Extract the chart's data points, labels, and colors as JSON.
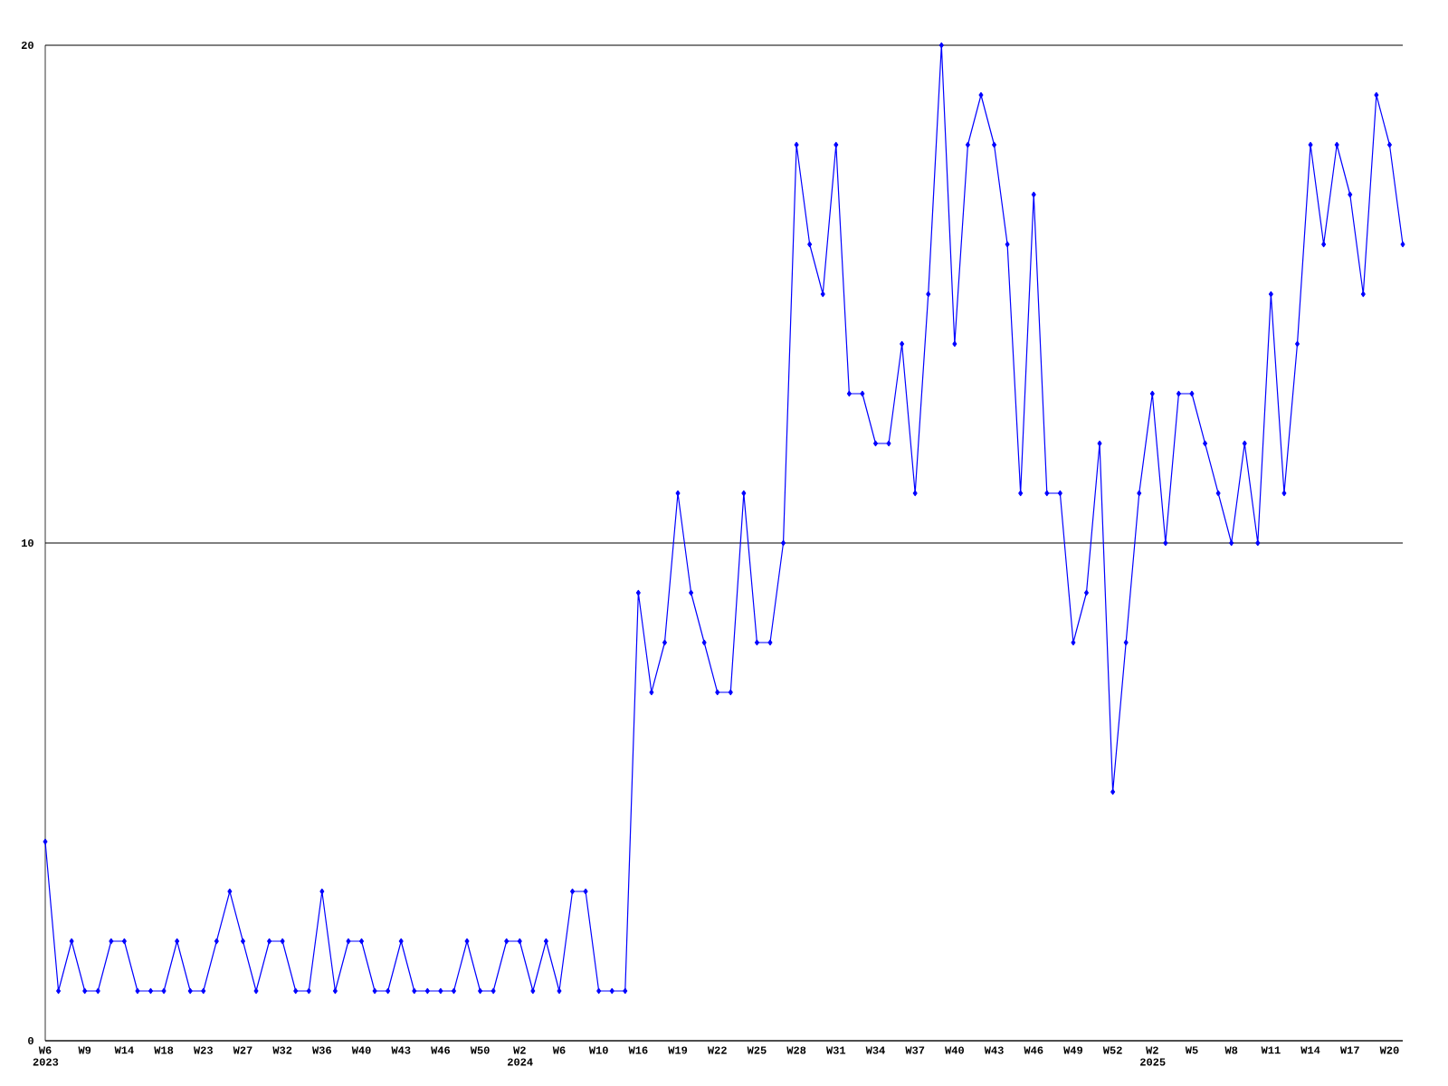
{
  "chart_data": {
    "type": "line",
    "categories": [
      "W6 2023",
      null,
      null,
      "W9",
      null,
      null,
      "W14",
      null,
      null,
      "W18",
      null,
      null,
      "W23",
      null,
      null,
      "W27",
      null,
      null,
      "W32",
      null,
      null,
      "W36",
      null,
      null,
      "W40",
      null,
      null,
      "W43",
      null,
      null,
      "W46",
      null,
      null,
      "W50",
      null,
      null,
      "W2 2024",
      null,
      null,
      "W6",
      null,
      null,
      "W10",
      null,
      null,
      "W16",
      null,
      null,
      "W19",
      null,
      null,
      "W22",
      null,
      null,
      "W25",
      null,
      null,
      "W28",
      null,
      null,
      "W31",
      null,
      null,
      "W34",
      null,
      null,
      "W37",
      null,
      null,
      "W40",
      null,
      null,
      "W43",
      null,
      null,
      "W46",
      null,
      null,
      "W49",
      null,
      null,
      "W52",
      null,
      null,
      "W2 2025",
      null,
      null,
      "W5",
      null,
      null,
      "W8",
      null,
      null,
      "W11",
      null,
      null,
      "W14",
      null,
      null,
      "W17",
      null,
      null,
      "W20",
      null
    ],
    "values": [
      4,
      1,
      2,
      1,
      1,
      2,
      2,
      1,
      1,
      1,
      2,
      1,
      1,
      2,
      3,
      2,
      1,
      2,
      2,
      1,
      1,
      3,
      1,
      2,
      2,
      1,
      1,
      2,
      1,
      1,
      1,
      1,
      2,
      1,
      1,
      2,
      2,
      1,
      2,
      1,
      3,
      3,
      1,
      1,
      1,
      9,
      7,
      8,
      11,
      9,
      8,
      7,
      7,
      11,
      8,
      8,
      10,
      18,
      16,
      15,
      18,
      13,
      13,
      12,
      12,
      14,
      11,
      15,
      20,
      14,
      18,
      19,
      18,
      16,
      11,
      17,
      11,
      11,
      8,
      9,
      12,
      5,
      8,
      11,
      13,
      10,
      13,
      13,
      12,
      11,
      10,
      12,
      10,
      15,
      11,
      14,
      18,
      16,
      18,
      17,
      15,
      19,
      18,
      16
    ],
    "color": "#0000ff",
    "marker": "diamond",
    "line_style": "solid",
    "ylim": [
      0,
      20
    ],
    "yticks": [
      0,
      10,
      20
    ],
    "grid": "y"
  }
}
